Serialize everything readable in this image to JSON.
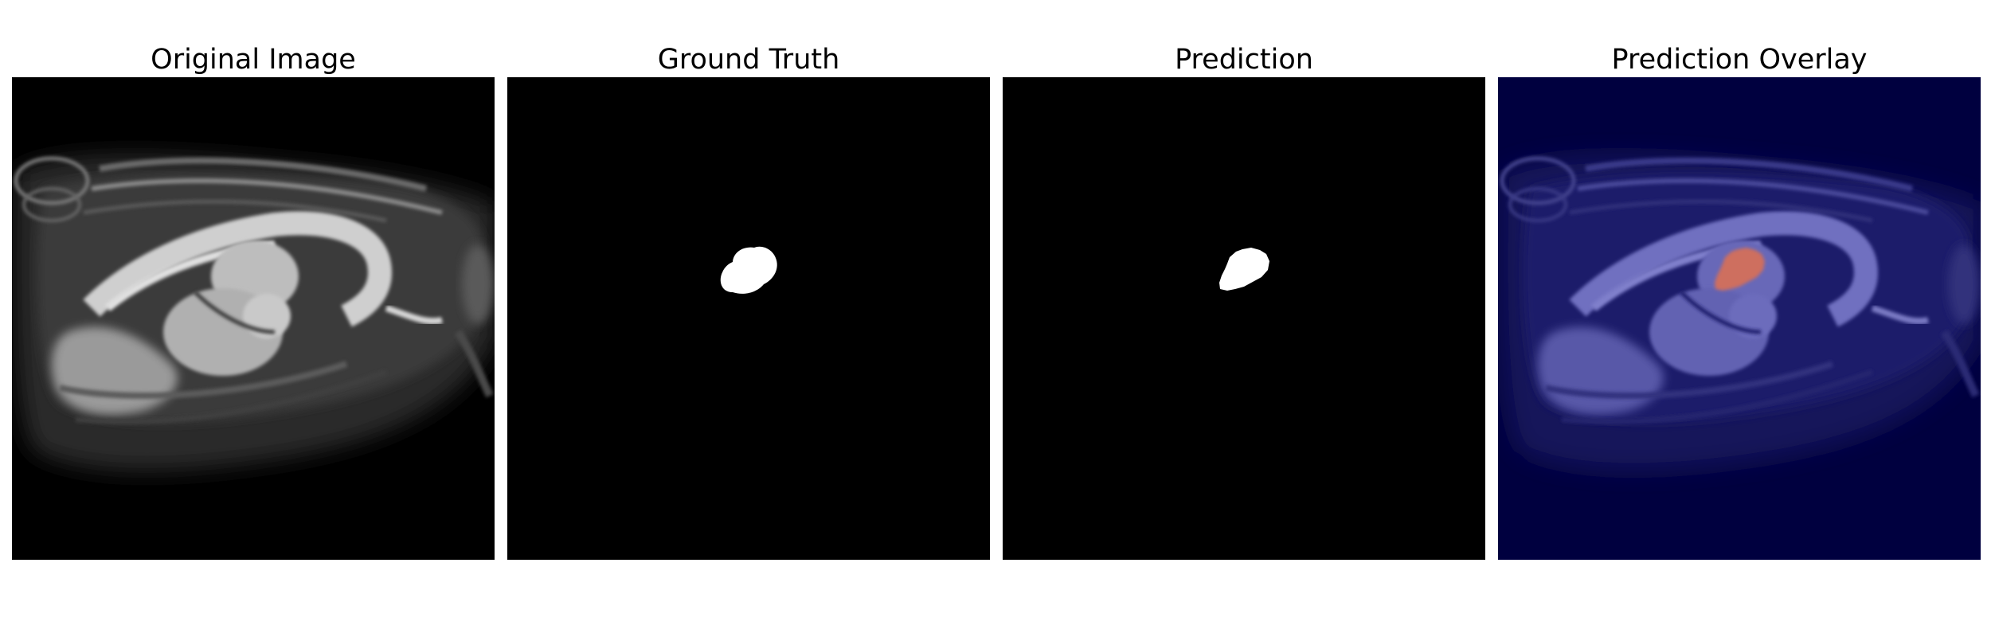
{
  "panels": [
    {
      "title": "Original Image"
    },
    {
      "title": "Ground Truth"
    },
    {
      "title": "Prediction"
    },
    {
      "title": "Prediction Overlay"
    }
  ],
  "colors": {
    "background": "#ffffff",
    "image_background": "#000000",
    "mask_foreground": "#ffffff",
    "overlay_background": "#00003f",
    "overlay_prediction": "#e07050"
  }
}
